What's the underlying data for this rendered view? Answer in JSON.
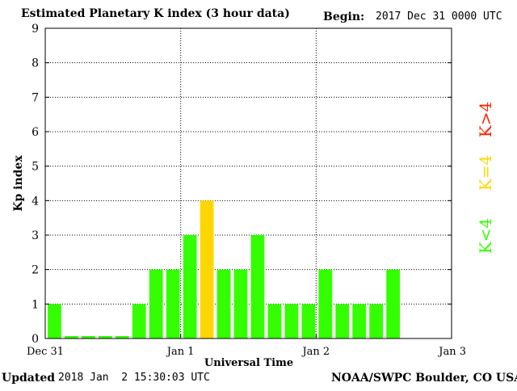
{
  "header": {
    "title": "Estimated Planetary K index (3 hour data)",
    "begin_label": "Begin:",
    "begin_value": "2017 Dec 31 0000 UTC"
  },
  "footer": {
    "updated_label": "Updated",
    "updated_value": "2018 Jan  2 15:30:03 UTC",
    "source": "NOAA/SWPC Boulder, CO USA"
  },
  "legend": [
    {
      "label": "K<4",
      "color": "#33ff00"
    },
    {
      "label": "K=4",
      "color": "#ffd700"
    },
    {
      "label": "K>4",
      "color": "#ff2200"
    }
  ],
  "chart_data": {
    "type": "bar",
    "title": "Estimated Planetary K index (3 hour data)",
    "xlabel": "Universal Time",
    "ylabel": "Kp index",
    "ylim": [
      0,
      9
    ],
    "y_ticks": [
      "0",
      "1",
      "2",
      "3",
      "4",
      "5",
      "6",
      "7",
      "8",
      "9"
    ],
    "x_ticks": [
      "Dec 31",
      "Jan 1",
      "Jan 2",
      "Jan 3"
    ],
    "grid": true,
    "interval_hours": 3,
    "values": [
      1,
      0,
      0,
      0,
      0,
      1,
      2,
      2,
      3,
      4,
      2,
      2,
      3,
      1,
      1,
      1,
      2,
      1,
      1,
      1,
      2
    ],
    "colors": {
      "low": "#33ff00",
      "eq4": "#ffd700",
      "high": "#ff2200"
    }
  }
}
